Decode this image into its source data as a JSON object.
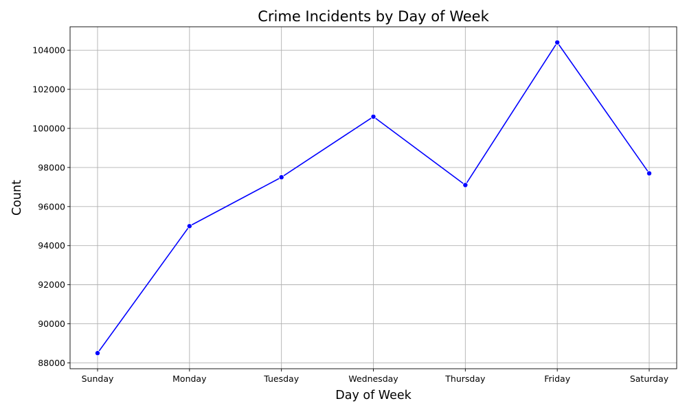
{
  "chart_data": {
    "type": "line",
    "title": "Crime Incidents by Day of Week",
    "xlabel": "Day of Week",
    "ylabel": "Count",
    "categories": [
      "Sunday",
      "Monday",
      "Tuesday",
      "Wednesday",
      "Thursday",
      "Friday",
      "Saturday"
    ],
    "series": [
      {
        "values": [
          88500,
          95000,
          97500,
          100600,
          97100,
          104400,
          97700
        ],
        "color": "#0000ff",
        "marker": "circle"
      }
    ],
    "ylim": [
      87700,
      105200
    ],
    "yticks": [
      88000,
      90000,
      92000,
      94000,
      96000,
      98000,
      100000,
      102000,
      104000
    ],
    "grid": true,
    "legend": "none"
  }
}
